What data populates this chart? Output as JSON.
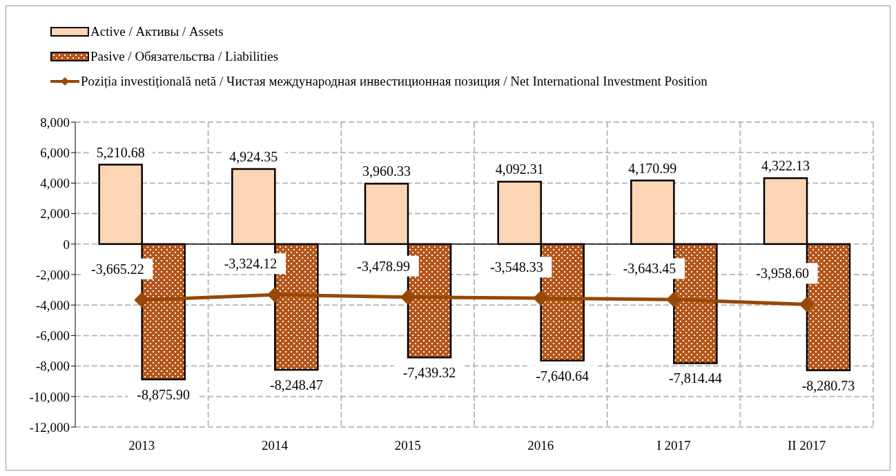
{
  "chart_data": {
    "type": "bar",
    "categories": [
      "2013",
      "2014",
      "2015",
      "2016",
      "I 2017",
      "II 2017"
    ],
    "series": [
      {
        "name": "Active / Активы / Assets",
        "color": "#fcd5b5",
        "values": [
          5210.68,
          4924.35,
          3960.33,
          4092.31,
          4170.99,
          4322.13
        ],
        "value_labels": [
          "5,210.68",
          "4,924.35",
          "3,960.33",
          "4,092.31",
          "4,170.99",
          "4,322.13"
        ]
      },
      {
        "name": "Pasive / Обязательства / Liabilities",
        "color": "#b5561a",
        "values": [
          -8875.9,
          -8248.47,
          -7439.32,
          -7640.64,
          -7814.44,
          -8280.73
        ],
        "value_labels": [
          "-8,875.90",
          "-8,248.47",
          "-7,439.32",
          "-7,640.64",
          "-7,814.44",
          "-8,280.73"
        ]
      },
      {
        "name": "Poziția investițională netă / Чистая международная инвестиционная позиция / Net International Investment Position",
        "type": "line",
        "color": "#974706",
        "marker": "diamond",
        "values": [
          -3665.22,
          -3324.12,
          -3478.99,
          -3548.33,
          -3643.45,
          -3958.6
        ],
        "value_labels": [
          "-3,665.22",
          "-3,324.12",
          "-3,478.99",
          "-3,548.33",
          "-3,643.45",
          "-3,958.60"
        ]
      }
    ],
    "ylim": [
      -12000,
      8000
    ],
    "yticks": [
      {
        "value": -12000,
        "label": "-12,000"
      },
      {
        "value": -10000,
        "label": "-10,000"
      },
      {
        "value": -8000,
        "label": "-8,000"
      },
      {
        "value": -6000,
        "label": "-6,000"
      },
      {
        "value": -4000,
        "label": "-4,000"
      },
      {
        "value": -2000,
        "label": "-2,000"
      },
      0,
      {
        "value": 2000,
        "label": "2,000"
      },
      {
        "value": 4000,
        "label": "4,000"
      },
      {
        "value": 6000,
        "label": "6,000"
      },
      {
        "value": 8000,
        "label": "8,000"
      }
    ],
    "grid": true,
    "legend": "top left"
  }
}
